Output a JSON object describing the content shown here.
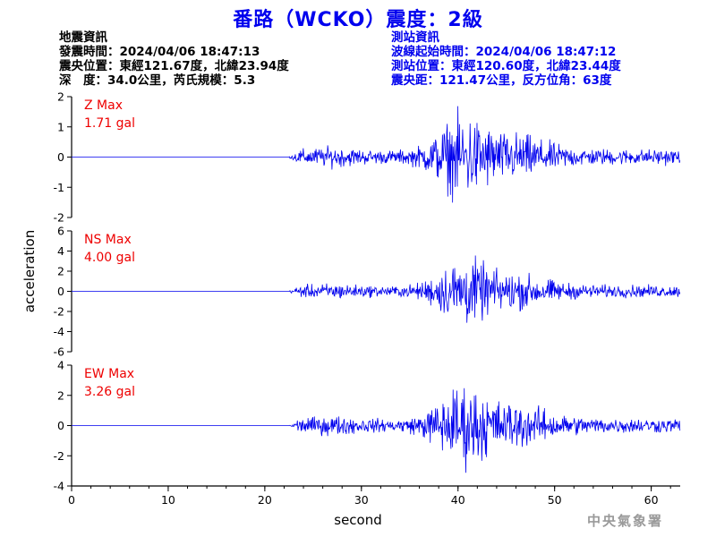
{
  "title": "番路（WCKO）震度：2級",
  "quake_info": {
    "heading": "地震資訊",
    "time": "發震時間：2024/04/06 18:47:13",
    "epicenter": "震央位置：東經121.67度，北緯23.94度",
    "depth_magnitude": "深　度：34.0公里，芮氏規模：5.3"
  },
  "station_info": {
    "heading": "測站資訊",
    "wave_start": "波線起始時間：2024/04/06 18:47:12",
    "location": "測站位置：東經120.60度，北緯23.44度",
    "distance": "震央距：121.47公里，反方位角：63度"
  },
  "agency": "中央氣象署",
  "chart_data": {
    "type": "line",
    "xlabel": "second",
    "ylabel": "acceleration",
    "xlim": [
      0,
      63
    ],
    "xticks": [
      0,
      10,
      20,
      30,
      40,
      50,
      60
    ],
    "line_color": "#0000ee",
    "label_color": "#ee0000",
    "signal_start_s": 22.5,
    "panels": [
      {
        "name": "Z Max",
        "max_label": "1.71 gal",
        "peak": 1.71,
        "ylim": [
          -2,
          2
        ],
        "yticks": [
          -2,
          -1,
          0,
          1,
          2
        ]
      },
      {
        "name": "NS Max",
        "max_label": "4.00 gal",
        "peak": 4.0,
        "ylim": [
          -6,
          6
        ],
        "yticks": [
          -6,
          -4,
          -2,
          0,
          2,
          4,
          6
        ]
      },
      {
        "name": "EW Max",
        "max_label": "3.26 gal",
        "peak": 3.26,
        "ylim": [
          -4,
          4
        ],
        "yticks": [
          -4,
          -2,
          0,
          2,
          4
        ]
      }
    ]
  }
}
